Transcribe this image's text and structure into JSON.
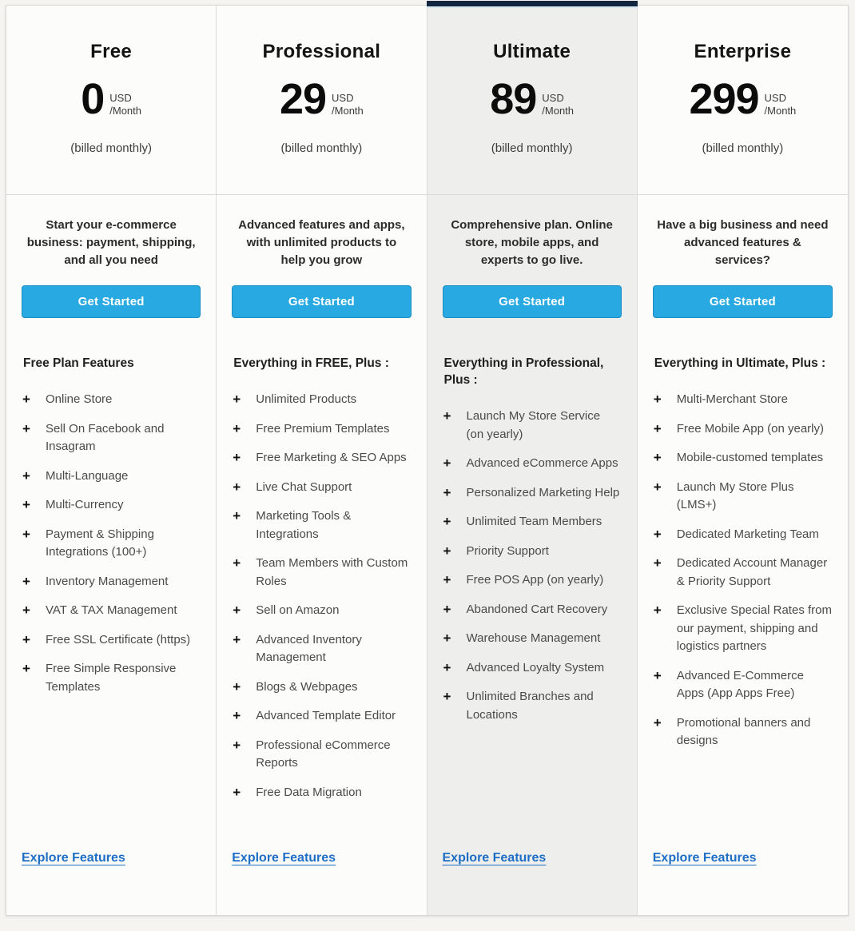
{
  "colors": {
    "accent_blue": "#29a9e1",
    "accent_blue_border": "#1d8cc2",
    "link_blue": "#1e6ec6",
    "highlight_navy": "#132640",
    "highlight_column_bg": "#eeeeec",
    "column_bg": "#fcfcfb",
    "page_bg": "#f6f4f0"
  },
  "plus_icon": "+",
  "plans": [
    {
      "name": "Free",
      "price": "0",
      "currency": "USD",
      "period": "/Month",
      "billing_note": "(billed monthly)",
      "description": "Start your e-commerce business: payment, shipping, and all you need",
      "cta_label": "Get Started",
      "features_title": "Free Plan Features",
      "features": [
        "Online Store",
        "Sell On Facebook and Insagram",
        "Multi-Language",
        "Multi-Currency",
        "Payment & Shipping Integrations (100+)",
        "Inventory Management",
        "VAT & TAX Management",
        "Free SSL Certificate (https)",
        "Free Simple Responsive Templates"
      ],
      "explore_label": "Explore Features",
      "highlighted": false
    },
    {
      "name": "Professional",
      "price": "29",
      "currency": "USD",
      "period": "/Month",
      "billing_note": "(billed monthly)",
      "description": "Advanced features and apps, with unlimited products to help you grow",
      "cta_label": "Get Started",
      "features_title": "Everything in FREE, Plus :",
      "features": [
        "Unlimited Products",
        "Free Premium Templates",
        "Free Marketing & SEO Apps",
        "Live Chat Support",
        "Marketing Tools & Integrations",
        "Team Members with Custom Roles",
        "Sell on Amazon",
        "Advanced Inventory Management",
        "Blogs & Webpages",
        "Advanced Template Editor",
        "Professional eCommerce Reports",
        "Free Data Migration"
      ],
      "explore_label": "Explore Features",
      "highlighted": false
    },
    {
      "name": "Ultimate",
      "price": "89",
      "currency": "USD",
      "period": "/Month",
      "billing_note": "(billed monthly)",
      "description": "Comprehensive plan. Online store, mobile apps, and experts to go live.",
      "cta_label": "Get Started",
      "features_title": "Everything in Professional, Plus :",
      "features": [
        "Launch My Store Service (on yearly)",
        "Advanced eCommerce Apps",
        "Personalized Marketing Help",
        "Unlimited Team Members",
        "Priority Support",
        "Free POS App (on yearly)",
        "Abandoned Cart Recovery",
        "Warehouse Management",
        "Advanced Loyalty System",
        "Unlimited Branches and Locations"
      ],
      "explore_label": "Explore Features",
      "highlighted": true
    },
    {
      "name": "Enterprise",
      "price": "299",
      "currency": "USD",
      "period": "/Month",
      "billing_note": "(billed monthly)",
      "description": "Have a big business and need advanced features & services?",
      "cta_label": "Get Started",
      "features_title": "Everything in Ultimate, Plus :",
      "features": [
        "Multi-Merchant Store",
        "Free Mobile App (on yearly)",
        "Mobile-customed templates",
        "Launch My Store Plus (LMS+)",
        "Dedicated Marketing Team",
        "Dedicated Account Manager & Priority Support",
        "Exclusive Special Rates from our payment, shipping and logistics partners",
        "Advanced E-Commerce Apps (App Apps Free)",
        "Promotional banners and designs"
      ],
      "explore_label": "Explore Features",
      "highlighted": false
    }
  ]
}
